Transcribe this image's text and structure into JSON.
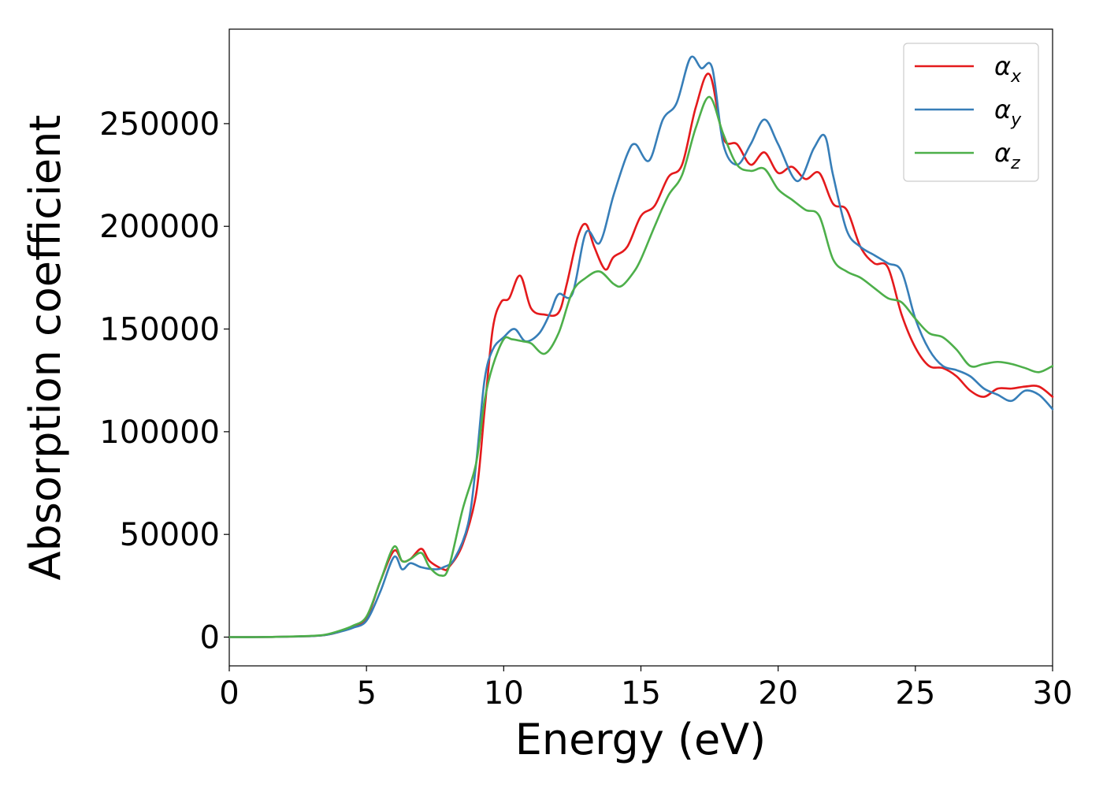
{
  "chart_data": {
    "type": "line",
    "xlabel": "Energy (eV)",
    "ylabel": "Absorption coefficient",
    "xlim": [
      0,
      30
    ],
    "ylim": [
      -14000,
      296000
    ],
    "xticks": [
      0,
      5,
      10,
      15,
      20,
      25,
      30
    ],
    "xtick_labels": [
      "0",
      "5",
      "10",
      "15",
      "20",
      "25",
      "30"
    ],
    "yticks": [
      0,
      50000,
      100000,
      150000,
      200000,
      250000
    ],
    "ytick_labels": [
      "0",
      "50000",
      "100000",
      "150000",
      "200000",
      "250000"
    ],
    "grid": false,
    "legend_position": "top-right",
    "series": [
      {
        "name": "α",
        "subscript": "x",
        "color": "#e41a1c",
        "x": [
          0,
          1,
          2,
          3,
          3.5,
          4,
          4.5,
          5,
          5.5,
          6,
          6.3,
          6.6,
          7,
          7.3,
          7.8,
          8,
          8.5,
          9,
          9.3,
          9.6,
          9.9,
          10.2,
          10.6,
          11,
          11.5,
          12,
          12.3,
          12.7,
          13,
          13.3,
          13.7,
          14,
          14.5,
          15,
          15.5,
          16,
          16.5,
          17,
          17.5,
          18,
          18.5,
          19,
          19.5,
          20,
          20.5,
          21,
          21.5,
          22,
          22.5,
          23,
          23.5,
          24,
          24.5,
          25,
          25.5,
          26,
          26.5,
          27,
          27.5,
          28,
          28.5,
          29,
          29.5,
          30
        ],
        "y": [
          0,
          0,
          200,
          500,
          1000,
          2500,
          5000,
          9000,
          27000,
          42000,
          37000,
          38000,
          43000,
          37000,
          33000,
          34000,
          45000,
          70000,
          110000,
          150000,
          163000,
          165000,
          176000,
          160000,
          157000,
          158000,
          172000,
          195000,
          201000,
          190000,
          179000,
          185000,
          190000,
          205000,
          210000,
          224000,
          230000,
          258000,
          274000,
          243000,
          240000,
          230000,
          236000,
          226000,
          229000,
          223000,
          226000,
          211000,
          208000,
          190000,
          182000,
          180000,
          157000,
          141000,
          132000,
          131000,
          127000,
          120000,
          117000,
          121000,
          121000,
          122000,
          122000,
          117000
        ]
      },
      {
        "name": "α",
        "subscript": "y",
        "color": "#377eb8",
        "x": [
          0,
          1,
          2,
          3,
          3.5,
          4,
          4.5,
          5,
          5.5,
          6,
          6.3,
          6.6,
          7,
          7.5,
          7.8,
          8.2,
          8.7,
          9,
          9.3,
          9.6,
          10,
          10.4,
          10.8,
          11.3,
          11.7,
          12,
          12.5,
          13,
          13.5,
          14,
          14.5,
          14.8,
          15.3,
          15.8,
          16.3,
          16.8,
          17.2,
          17.6,
          18,
          18.5,
          19,
          19.5,
          20,
          20.7,
          21.3,
          21.7,
          22,
          22.5,
          23,
          23.5,
          24,
          24.5,
          25,
          25.5,
          26,
          26.5,
          27,
          27.5,
          28,
          28.5,
          29,
          29.5,
          30
        ],
        "y": [
          0,
          0,
          200,
          500,
          1000,
          2500,
          4500,
          8000,
          22000,
          39000,
          33000,
          36000,
          34000,
          33000,
          34000,
          38000,
          55000,
          85000,
          125000,
          140000,
          146000,
          150000,
          144000,
          148000,
          158000,
          167000,
          167000,
          197000,
          192000,
          215000,
          235000,
          240000,
          232000,
          252000,
          260000,
          282000,
          277000,
          277000,
          240000,
          230000,
          240000,
          252000,
          240000,
          222000,
          238000,
          244000,
          225000,
          198000,
          190000,
          186000,
          182000,
          178000,
          155000,
          140000,
          132000,
          130000,
          127000,
          121000,
          118000,
          115000,
          120000,
          118000,
          111000
        ]
      },
      {
        "name": "α",
        "subscript": "z",
        "color": "#4daf4a",
        "x": [
          0,
          1,
          2,
          3,
          3.5,
          4,
          4.5,
          5,
          5.5,
          6,
          6.3,
          6.6,
          7,
          7.3,
          7.7,
          8,
          8.5,
          9,
          9.3,
          9.6,
          10,
          10.3,
          10.7,
          11,
          11.5,
          12,
          12.5,
          13,
          13.5,
          14,
          14.3,
          14.7,
          15,
          15.5,
          16,
          16.5,
          17,
          17.5,
          18,
          18.5,
          19,
          19.5,
          20,
          20.5,
          21,
          21.5,
          22,
          22.5,
          23,
          23.5,
          24,
          24.5,
          25,
          25.5,
          26,
          26.5,
          27,
          27.5,
          28,
          28.5,
          29,
          29.5,
          30
        ],
        "y": [
          0,
          0,
          200,
          600,
          1200,
          3000,
          5500,
          10000,
          27000,
          44000,
          37000,
          38000,
          41000,
          34000,
          30000,
          34000,
          62000,
          85000,
          115000,
          132000,
          145000,
          145000,
          144000,
          143000,
          138000,
          148000,
          168000,
          175000,
          178000,
          172000,
          171000,
          177000,
          184000,
          200000,
          215000,
          225000,
          248000,
          263000,
          245000,
          230000,
          227000,
          228000,
          218000,
          213000,
          208000,
          205000,
          184000,
          178000,
          175000,
          170000,
          165000,
          163000,
          155000,
          148000,
          146000,
          140000,
          132000,
          133000,
          134000,
          133000,
          131000,
          129000,
          132000
        ]
      }
    ]
  }
}
